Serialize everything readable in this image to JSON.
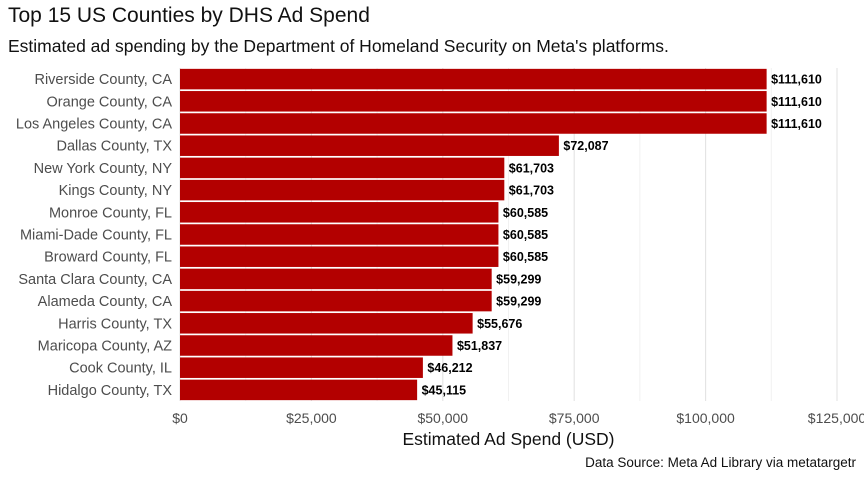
{
  "chart_data": {
    "type": "bar",
    "orientation": "horizontal",
    "title": "Top 15 US Counties by DHS Ad Spend",
    "subtitle": "Estimated ad spending by the Department of Homeland Security on Meta's platforms.",
    "caption": "Data Source: Meta Ad Library via metatargetr",
    "xlabel": "Estimated Ad Spend (USD)",
    "ylabel": "",
    "xlim": [
      0,
      125000
    ],
    "x_ticks": [
      0,
      25000,
      50000,
      75000,
      100000,
      125000
    ],
    "x_tick_labels": [
      "$0",
      "$25,000",
      "$50,000",
      "$75,000",
      "$100,000",
      "$125,000"
    ],
    "grid": true,
    "bar_color": "#b30000",
    "categories": [
      "Riverside County, CA",
      "Orange County, CA",
      "Los Angeles County, CA",
      "Dallas County, TX",
      "New York County, NY",
      "Kings County, NY",
      "Monroe County, FL",
      "Miami-Dade County, FL",
      "Broward County, FL",
      "Santa Clara County, CA",
      "Alameda County, CA",
      "Harris County, TX",
      "Maricopa County, AZ",
      "Cook County, IL",
      "Hidalgo County, TX"
    ],
    "values": [
      111610,
      111610,
      111610,
      72087,
      61703,
      61703,
      60585,
      60585,
      60585,
      59299,
      59299,
      55676,
      51837,
      46212,
      45115
    ],
    "value_labels": [
      "$111,610",
      "$111,610",
      "$111,610",
      "$72,087",
      "$61,703",
      "$61,703",
      "$60,585",
      "$60,585",
      "$60,585",
      "$59,299",
      "$59,299",
      "$55,676",
      "$51,837",
      "$46,212",
      "$45,115"
    ]
  }
}
